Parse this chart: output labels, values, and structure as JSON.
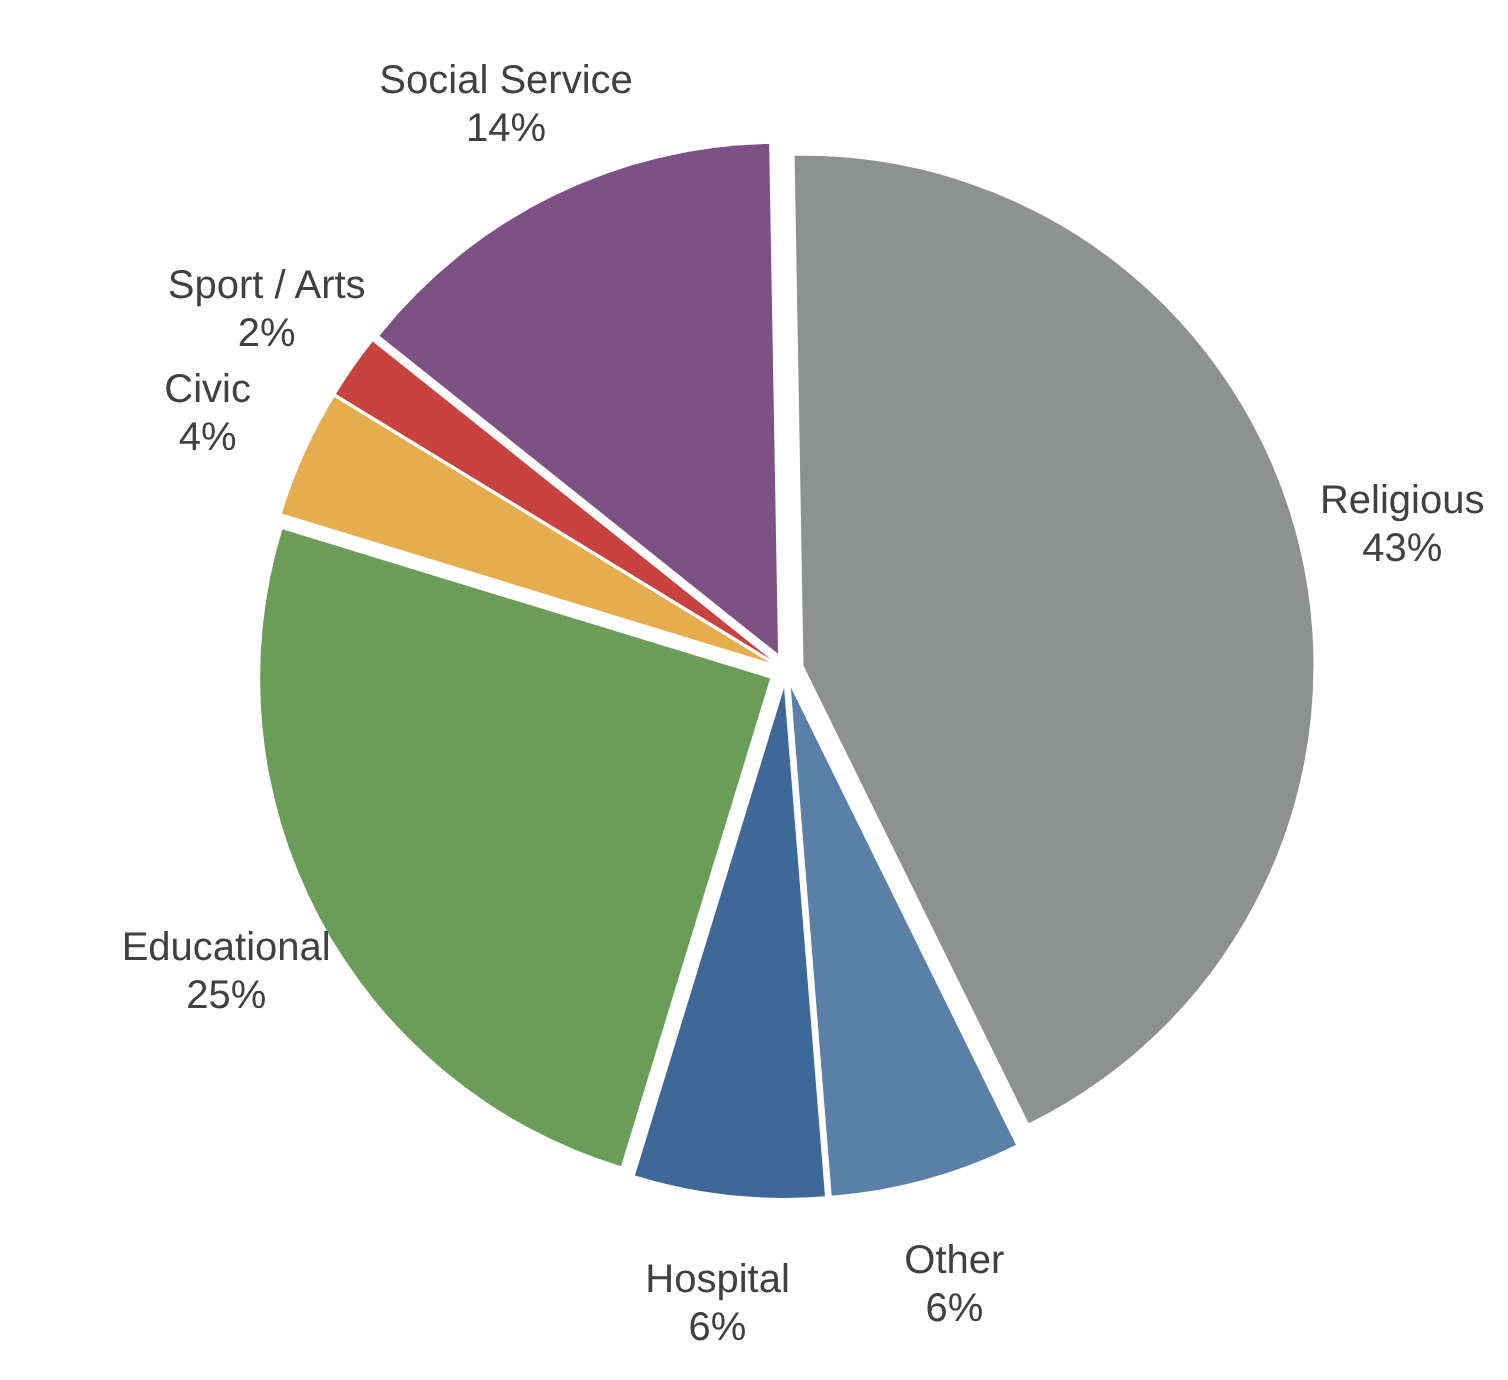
{
  "chart_data": {
    "type": "pie",
    "categories": [
      "Religious",
      "Other",
      "Hospital",
      "Educational",
      "Civic",
      "Sport / Arts",
      "Social Service"
    ],
    "values": [
      43,
      6,
      6,
      25,
      4,
      2,
      14
    ],
    "value_labels": [
      "43%",
      "6%",
      "6%",
      "25%",
      "4%",
      "2%",
      "14%"
    ],
    "colors": [
      "#8f9190",
      "#5a80a8",
      "#3d6897",
      "#6a9e58",
      "#e6ad4f",
      "#c8433f",
      "#7e5186"
    ]
  }
}
